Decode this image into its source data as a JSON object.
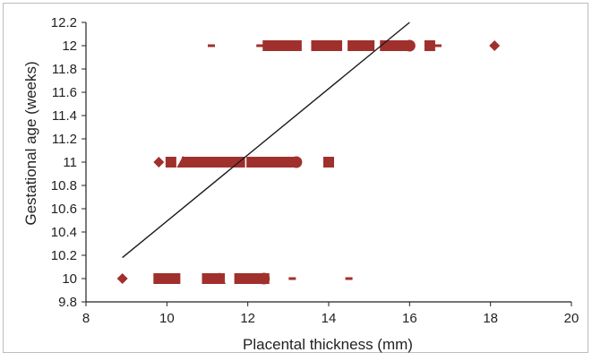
{
  "chart_data": {
    "type": "scatter",
    "title": "",
    "xlabel": "Placental thickness (mm)",
    "ylabel": "Gestational age (weeks)",
    "xlim": [
      8,
      20
    ],
    "ylim": [
      9.8,
      12.2
    ],
    "xticks": [
      8,
      10,
      12,
      14,
      16,
      18,
      20
    ],
    "yticks": [
      9.8,
      10,
      10.2,
      10.4,
      10.6,
      10.8,
      11,
      11.2,
      11.4,
      11.6,
      11.8,
      12,
      12.2
    ],
    "grid": false,
    "legend": "none",
    "colors": {
      "marker": "#a0302c",
      "trendline": "#1a1a1a",
      "axis": "#222222"
    },
    "series": [
      {
        "marker": "square",
        "points": [
          [
            9.8,
            10
          ],
          [
            9.9,
            10
          ],
          [
            10.0,
            10
          ],
          [
            10.1,
            10
          ],
          [
            10.2,
            10
          ],
          [
            11.0,
            10
          ],
          [
            11.1,
            10
          ],
          [
            11.2,
            10
          ],
          [
            11.3,
            10
          ],
          [
            11.8,
            10
          ],
          [
            11.9,
            10
          ],
          [
            12.0,
            10
          ],
          [
            12.1,
            10
          ],
          [
            12.2,
            10
          ],
          [
            12.3,
            10
          ],
          [
            12.4,
            10
          ],
          [
            10.1,
            11
          ],
          [
            10.5,
            11
          ],
          [
            10.6,
            11
          ],
          [
            10.7,
            11
          ],
          [
            10.8,
            11
          ],
          [
            10.9,
            11
          ],
          [
            11.0,
            11
          ],
          [
            11.1,
            11
          ],
          [
            11.2,
            11
          ],
          [
            11.3,
            11
          ],
          [
            11.4,
            11
          ],
          [
            11.5,
            11
          ],
          [
            11.6,
            11
          ],
          [
            11.7,
            11
          ],
          [
            11.8,
            11
          ],
          [
            12.1,
            11
          ],
          [
            12.2,
            11
          ],
          [
            12.3,
            11
          ],
          [
            12.4,
            11
          ],
          [
            12.5,
            11
          ],
          [
            12.6,
            11
          ],
          [
            12.7,
            11
          ],
          [
            12.8,
            11
          ],
          [
            12.9,
            11
          ],
          [
            13.0,
            11
          ],
          [
            13.1,
            11
          ],
          [
            14.0,
            11
          ],
          [
            12.5,
            12
          ],
          [
            12.6,
            12
          ],
          [
            12.7,
            12
          ],
          [
            12.8,
            12
          ],
          [
            12.9,
            12
          ],
          [
            13.0,
            12
          ],
          [
            13.1,
            12
          ],
          [
            13.2,
            12
          ],
          [
            13.7,
            12
          ],
          [
            13.8,
            12
          ],
          [
            13.9,
            12
          ],
          [
            14.0,
            12
          ],
          [
            14.1,
            12
          ],
          [
            14.2,
            12
          ],
          [
            14.6,
            12
          ],
          [
            14.7,
            12
          ],
          [
            14.8,
            12
          ],
          [
            14.9,
            12
          ],
          [
            15.0,
            12
          ],
          [
            15.4,
            12
          ],
          [
            15.5,
            12
          ],
          [
            15.6,
            12
          ],
          [
            15.7,
            12
          ],
          [
            15.8,
            12
          ],
          [
            15.9,
            12
          ],
          [
            16.5,
            12
          ]
        ]
      },
      {
        "marker": "diamond",
        "points": [
          [
            8.9,
            10
          ],
          [
            9.8,
            11
          ],
          [
            18.1,
            12
          ]
        ]
      },
      {
        "marker": "triangle",
        "points": [
          [
            10.4,
            11
          ],
          [
            11.3,
            10
          ]
        ]
      },
      {
        "marker": "circle",
        "points": [
          [
            13.2,
            11
          ],
          [
            16.0,
            12
          ],
          [
            12.4,
            10
          ]
        ]
      },
      {
        "marker": "dash",
        "points": [
          [
            11.1,
            12
          ],
          [
            12.3,
            12
          ],
          [
            16.7,
            12
          ],
          [
            13.1,
            10
          ],
          [
            14.5,
            10
          ]
        ]
      }
    ],
    "trendline": [
      [
        8.9,
        10.18
      ],
      [
        16.0,
        12.2
      ]
    ]
  }
}
